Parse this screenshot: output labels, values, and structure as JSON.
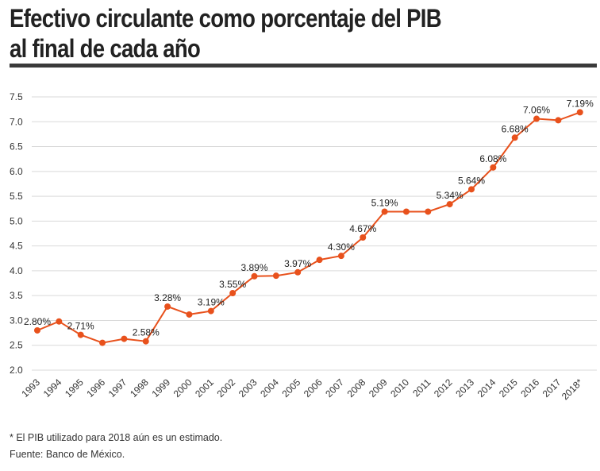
{
  "title_line1": "Efectivo circulante como porcentaje del PIB",
  "title_line2": "al final de cada año",
  "footnote": "* El PIB utilizado para 2018 aún es un estimado.",
  "source": "Fuente: Banco de México.",
  "colors": {
    "line": "#e8511c",
    "grid": "#d9d9d9",
    "rule": "#3a3a3a",
    "text": "#222222"
  },
  "chart_data": {
    "type": "line",
    "title": "Efectivo circulante como porcentaje del PIB al final de cada año",
    "xlabel": "",
    "ylabel": "",
    "ylim": [
      2.0,
      7.5
    ],
    "yticks": [
      "2.0",
      "2.5",
      "3.0",
      "3.5",
      "4.0",
      "4.5",
      "5.0",
      "5.5",
      "6.0",
      "6.5",
      "7.0",
      "7.5"
    ],
    "grid": true,
    "categories": [
      "1993",
      "1994",
      "1995",
      "1996",
      "1997",
      "1998",
      "1999",
      "2000",
      "2001",
      "2002",
      "2003",
      "2004",
      "2005",
      "2006",
      "2007",
      "2008",
      "2009",
      "2010",
      "2011",
      "2012",
      "2013",
      "2014",
      "2015",
      "2016",
      "2017",
      "2018*"
    ],
    "values": [
      2.8,
      2.98,
      2.71,
      2.55,
      2.63,
      2.58,
      3.28,
      3.12,
      3.19,
      3.55,
      3.89,
      3.9,
      3.97,
      4.22,
      4.3,
      4.67,
      5.19,
      5.19,
      5.19,
      5.34,
      5.64,
      6.08,
      6.68,
      7.06,
      7.03,
      7.19
    ],
    "data_labels": [
      "2.80%",
      "",
      "2.71%",
      "",
      "",
      "2.58%",
      "3.28%",
      "",
      "3.19%",
      "3.55%",
      "3.89%",
      "",
      "3.97%",
      "",
      "4.30%",
      "4.67%",
      "5.19%",
      "",
      "",
      "5.34%",
      "5.64%",
      "6.08%",
      "6.68%",
      "7.06%",
      "",
      "7.19%"
    ]
  }
}
